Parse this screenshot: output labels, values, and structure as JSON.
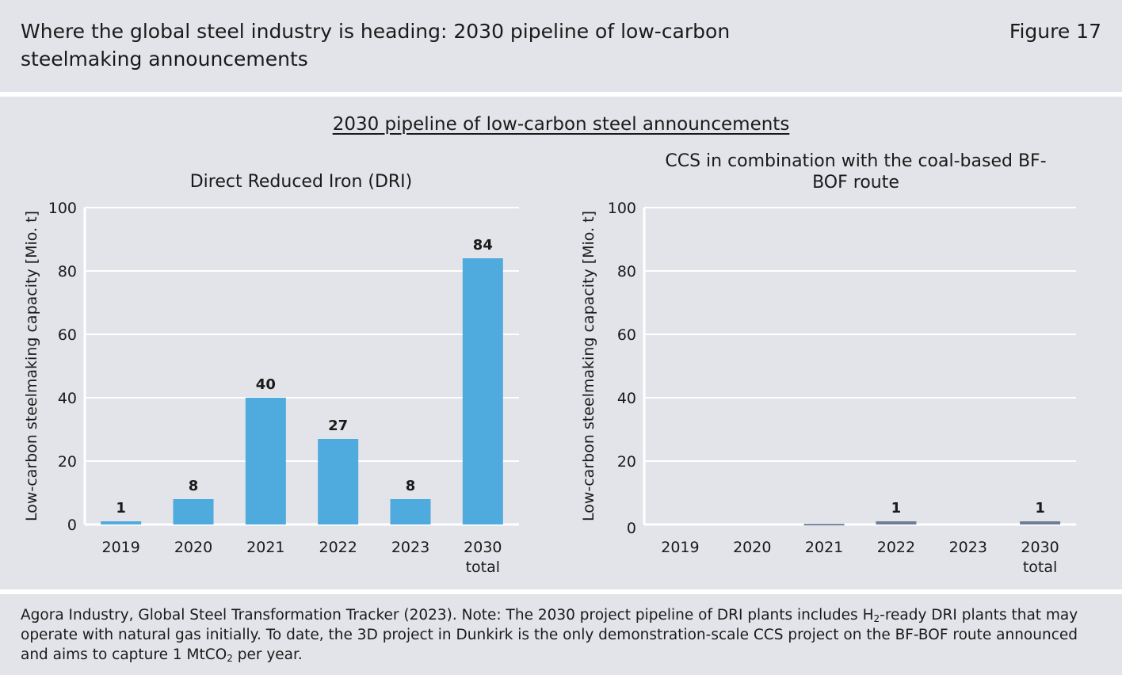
{
  "header": {
    "title": "Where the global steel industry is heading: 2030 pipeline of low-carbon steelmaking announcements",
    "figure_number": "Figure 17"
  },
  "main": {
    "heading": "2030 pipeline of low-carbon steel announcements"
  },
  "footer": {
    "note_part1": "Agora Industry, Global Steel Transformation Tracker (2023). Note: The 2030 project pipeline of DRI plants includes H",
    "note_sub1": "2",
    "note_part2": "-ready DRI plants that may operate with natural gas initially. To date, the 3D project in Dunkirk is the only demonstration-scale CCS project on the BF-BOF route announced and aims to capture 1 MtCO",
    "note_sub2": "2",
    "note_part3": " per year."
  },
  "colors": {
    "panel_background": "#e3e4e9",
    "dri_bar": "#4faade",
    "ccs_bar": "#6e7e9a",
    "gridline": "#ffffff"
  },
  "chart_data": [
    {
      "type": "bar",
      "title": "Direct Reduced Iron (DRI)",
      "ylabel": "Low-carbon steelmaking capacity [Mio. t]",
      "xlabel": "",
      "categories": [
        "2019",
        "2020",
        "2021",
        "2022",
        "2023",
        "2030 total"
      ],
      "values": [
        1,
        8,
        40,
        27,
        8,
        84
      ],
      "data_labels": [
        "1",
        "8",
        "40",
        "27",
        "8",
        "84"
      ],
      "ylim": [
        0,
        100
      ],
      "yticks": [
        0,
        20,
        40,
        60,
        80,
        100
      ],
      "grid": true,
      "color": "#4faade"
    },
    {
      "type": "bar",
      "title": "CCS in combination with the coal-based BF-BOF route",
      "ylabel": "Low-carbon steelmaking capacity [Mio. t]",
      "xlabel": "",
      "categories": [
        "2019",
        "2020",
        "2021",
        "2022",
        "2023",
        "2030 total"
      ],
      "values": [
        0,
        0,
        0.2,
        1,
        0,
        1
      ],
      "data_labels": [
        "",
        "",
        "",
        "1",
        "",
        "1"
      ],
      "ylim": [
        0,
        100
      ],
      "yticks": [
        0,
        20,
        40,
        60,
        80,
        100
      ],
      "grid": true,
      "color": "#6e7e9a"
    }
  ]
}
